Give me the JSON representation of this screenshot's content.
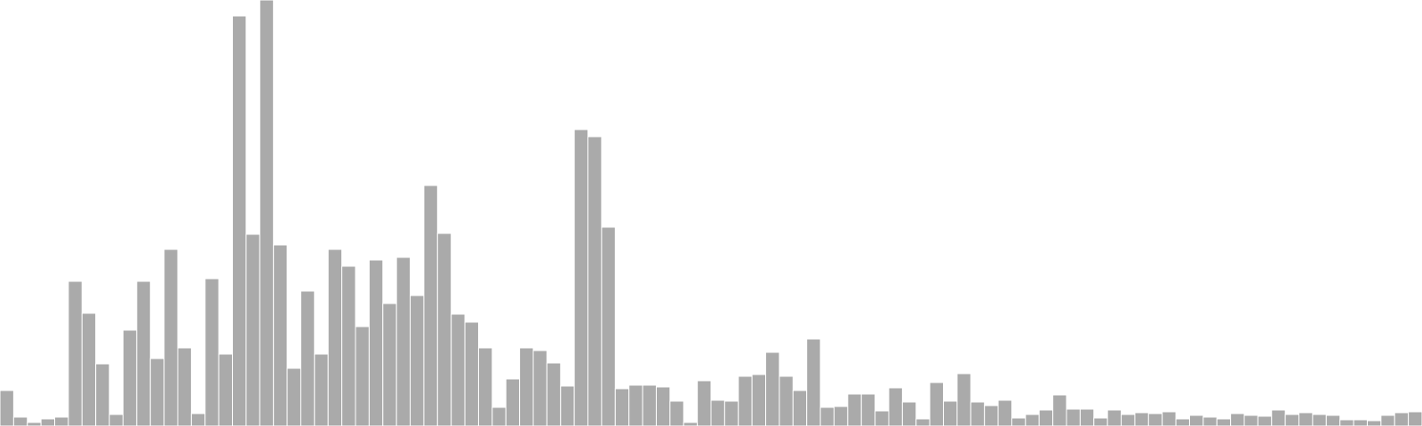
{
  "chart_data": {
    "type": "bar",
    "title": "",
    "xlabel": "",
    "ylabel": "",
    "grid": false,
    "legend": "none",
    "ylim": [
      0,
      480
    ],
    "bar_color": "#aaaaaa",
    "edge_color": "#ffffff",
    "values": [
      40,
      10,
      4,
      8,
      10,
      163,
      127,
      70,
      13,
      108,
      163,
      76,
      199,
      88,
      14,
      166,
      81,
      462,
      216,
      480,
      204,
      65,
      152,
      81,
      199,
      180,
      112,
      187,
      138,
      190,
      147,
      271,
      217,
      126,
      117,
      88,
      21,
      53,
      88,
      85,
      71,
      45,
      334,
      326,
      224,
      42,
      46,
      46,
      44,
      28,
      4,
      51,
      29,
      28,
      56,
      58,
      83,
      56,
      40,
      98,
      21,
      22,
      36,
      36,
      17,
      43,
      27,
      8,
      49,
      28,
      59,
      27,
      23,
      29,
      9,
      13,
      18,
      35,
      19,
      19,
      9,
      18,
      13,
      15,
      14,
      16,
      8,
      12,
      10,
      8,
      14,
      12,
      11,
      18,
      13,
      15,
      13,
      12,
      7,
      7,
      6,
      12,
      15,
      16
    ]
  }
}
